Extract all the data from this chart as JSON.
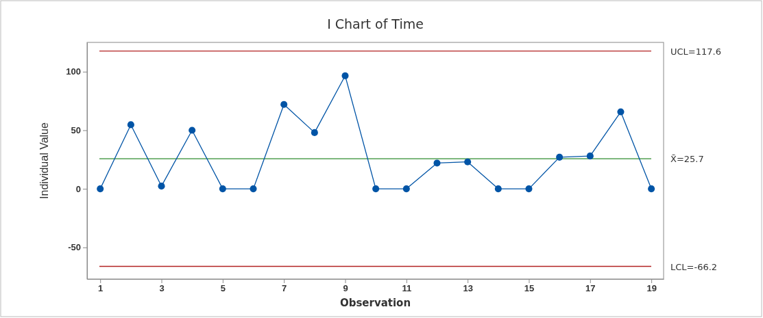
{
  "chart_data": {
    "type": "line",
    "title": "I Chart of Time",
    "xlabel": "Observation",
    "ylabel": "Individual Value",
    "x": [
      1,
      2,
      3,
      4,
      5,
      6,
      7,
      8,
      9,
      10,
      11,
      12,
      13,
      14,
      15,
      16,
      17,
      18,
      19
    ],
    "series": [
      {
        "color": "#0054a6",
        "values": [
          0,
          54.7,
          2.3,
          50,
          0,
          0,
          72,
          48,
          96.5,
          0,
          0,
          22,
          23,
          0,
          0,
          27,
          28,
          65.7,
          0
        ]
      }
    ],
    "xlim": [
      0.57,
      19.4
    ],
    "xticks": [
      1,
      3,
      5,
      7,
      9,
      11,
      13,
      15,
      17,
      19
    ],
    "ylim": [
      -77,
      125
    ],
    "yticks": [
      -50,
      0,
      50,
      100
    ],
    "ref_lines": [
      {
        "axis": "y",
        "value": 117.6,
        "label": "UCL=117.6",
        "color": "#b22222"
      },
      {
        "axis": "y",
        "value": 25.7,
        "label": "X̄=25.7",
        "color": "#2e8b2e"
      },
      {
        "axis": "y",
        "value": -66.2,
        "label": "LCL=-66.2",
        "color": "#b22222"
      }
    ],
    "marker": "circle",
    "line_style": "solid"
  }
}
